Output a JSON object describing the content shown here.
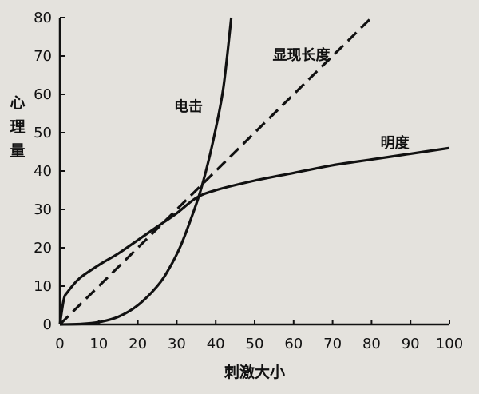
{
  "chart_data": {
    "type": "line",
    "title": "",
    "xlabel": "刺激大小",
    "ylabel": "心理量",
    "xlim": [
      0,
      100
    ],
    "ylim": [
      0,
      80
    ],
    "xticks": [
      0,
      10,
      20,
      30,
      40,
      50,
      60,
      70,
      80,
      90,
      100
    ],
    "yticks": [
      0,
      10,
      20,
      30,
      40,
      50,
      60,
      70,
      80
    ],
    "grid": false,
    "legend": "none",
    "series": [
      {
        "name": "显现长度",
        "style": "dashed",
        "x": [
          0,
          10,
          20,
          30,
          40,
          50,
          60,
          70,
          80
        ],
        "y": [
          0,
          10,
          20,
          30,
          40,
          50,
          60,
          70,
          80
        ]
      },
      {
        "name": "电击",
        "style": "solid",
        "x": [
          0,
          5,
          10,
          15,
          20,
          25,
          28,
          31,
          34,
          36,
          38,
          40,
          42,
          44
        ],
        "y": [
          0,
          0.1,
          0.6,
          2,
          5,
          10,
          14.5,
          20.5,
          28.5,
          34.5,
          42,
          51,
          62,
          80
        ]
      },
      {
        "name": "明度",
        "style": "solid",
        "x": [
          0,
          1,
          2,
          5,
          10,
          15,
          20,
          25,
          30,
          35,
          40,
          50,
          60,
          70,
          80,
          90,
          100
        ],
        "y": [
          0,
          6.5,
          8.5,
          12,
          15.5,
          18.5,
          22,
          25.5,
          29,
          33,
          35,
          37.5,
          39.5,
          41.5,
          43,
          44.5,
          46
        ]
      }
    ]
  }
}
